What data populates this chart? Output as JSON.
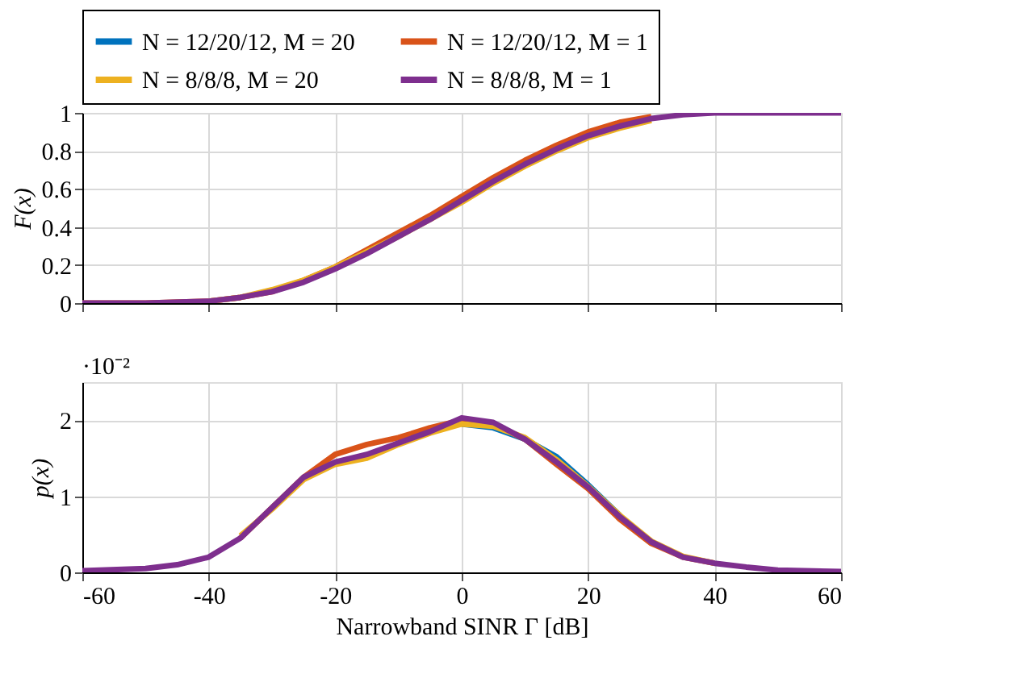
{
  "chart_data": [
    {
      "type": "line",
      "ylabel": "F(x)",
      "xlim": [
        -60,
        60
      ],
      "ylim": [
        0,
        1
      ],
      "xticks": [
        -60,
        -40,
        -20,
        0,
        20,
        40,
        60
      ],
      "yticks": [
        0,
        0.2,
        0.4,
        0.6,
        0.8,
        1
      ],
      "grid": true,
      "legend": "top",
      "tick_labels": "y",
      "x": [
        -60,
        -50,
        -40,
        -35,
        -30,
        -25,
        -20,
        -15,
        -10,
        -5,
        0,
        5,
        10,
        15,
        20,
        25,
        30,
        35,
        40,
        50,
        60
      ],
      "series": [
        {
          "name": "N = 12/20/12, M = 20",
          "color": "#0072bd",
          "values": [
            null,
            null,
            null,
            null,
            null,
            null,
            null,
            null,
            null,
            null,
            null,
            null,
            null,
            null,
            null,
            null,
            null,
            null,
            null,
            null,
            null
          ]
        },
        {
          "name": "N = 12/20/12, M = 1",
          "color": "#d95319",
          "values": [
            0,
            0,
            0.01,
            0.03,
            0.06,
            0.12,
            0.19,
            0.28,
            0.37,
            0.46,
            0.56,
            0.66,
            0.75,
            0.83,
            0.9,
            0.95,
            0.98,
            null,
            null,
            null,
            null
          ]
        },
        {
          "name": "N = 8/8/8, M = 20",
          "color": "#edb120",
          "values": [
            null,
            null,
            0.01,
            0.03,
            0.07,
            0.12,
            0.19,
            0.27,
            0.35,
            0.44,
            0.53,
            0.63,
            0.72,
            0.8,
            0.87,
            0.92,
            0.96,
            null,
            null,
            null,
            null
          ]
        },
        {
          "name": "N = 8/8/8, M = 1",
          "color": "#7e2f8e",
          "values": [
            0,
            0,
            0.01,
            0.03,
            0.06,
            0.11,
            0.18,
            0.26,
            0.35,
            0.44,
            0.54,
            0.64,
            0.73,
            0.81,
            0.88,
            0.93,
            0.97,
            0.99,
            1,
            1,
            1
          ]
        }
      ]
    },
    {
      "type": "line",
      "ylabel": "p(x)",
      "xlabel": "Narrowband SINR Γ [dB]",
      "annotations": [
        "·10⁻²"
      ],
      "xlim": [
        -60,
        60
      ],
      "ylim": [
        0,
        2.5
      ],
      "xticks": [
        -60,
        -40,
        -20,
        0,
        20,
        40,
        60
      ],
      "yticks": [
        0,
        1,
        2
      ],
      "grid": true,
      "x": [
        -60,
        -50,
        -45,
        -40,
        -35,
        -30,
        -25,
        -20,
        -15,
        -10,
        -5,
        0,
        5,
        10,
        15,
        20,
        25,
        30,
        35,
        40,
        45,
        50,
        60
      ],
      "series": [
        {
          "color": "#0072bd",
          "values": [
            null,
            null,
            null,
            null,
            null,
            null,
            null,
            null,
            null,
            null,
            null,
            1.95,
            1.9,
            1.75,
            1.52,
            1.15,
            0.75,
            null,
            null,
            null,
            null,
            null,
            null
          ]
        },
        {
          "color": "#d95319",
          "values": [
            null,
            null,
            null,
            null,
            0.45,
            0.85,
            1.25,
            1.55,
            1.68,
            1.77,
            1.9,
            2.0,
            1.95,
            1.75,
            1.42,
            1.1,
            0.7,
            0.38,
            0.2,
            0.12,
            null,
            null,
            null
          ]
        },
        {
          "color": "#edb120",
          "values": [
            null,
            null,
            null,
            null,
            0.48,
            0.83,
            1.22,
            1.42,
            1.5,
            1.68,
            1.83,
            1.95,
            1.92,
            1.77,
            1.48,
            1.13,
            0.75,
            0.41,
            0.21,
            0.12,
            null,
            null,
            null
          ]
        },
        {
          "color": "#7e2f8e",
          "values": [
            0.02,
            0.05,
            0.1,
            0.2,
            0.45,
            0.85,
            1.25,
            1.45,
            1.55,
            1.7,
            1.85,
            2.03,
            1.97,
            1.75,
            1.45,
            1.12,
            0.73,
            0.4,
            0.2,
            0.12,
            0.07,
            0.03,
            0.01
          ]
        }
      ]
    }
  ]
}
